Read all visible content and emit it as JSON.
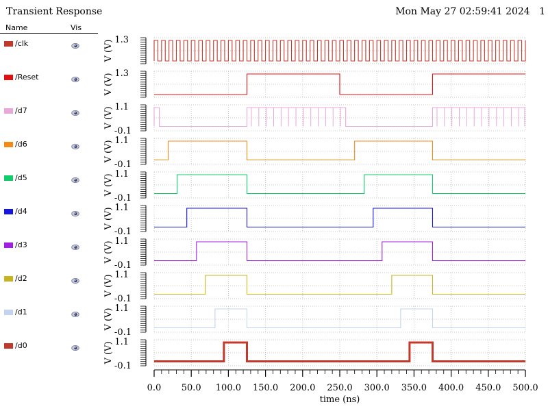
{
  "window": {
    "title": "Transient Response",
    "timestamp": "Mon May 27 02:59:41 2024",
    "page_number": "1"
  },
  "legend": {
    "name_header": "Name",
    "vis_header": "Vis",
    "vis_icon": "eye-icon"
  },
  "chart_data": {
    "type": "line",
    "xlabel": "time (ns)",
    "xlim": [
      0,
      500
    ],
    "xticks": [
      "0.0",
      "50.0",
      "100.0",
      "150.0",
      "200.0",
      "250.0",
      "300.0",
      "350.0",
      "400.0",
      "450.0",
      "500.0"
    ],
    "grid": true,
    "series": [
      {
        "name": "/clk",
        "color": "#c0392b",
        "ylabel": "V (V)",
        "ymax_label": "1.3",
        "ymin_label": "",
        "ylim": [
          0,
          1.3
        ],
        "clock_period_ns": 10,
        "clock_first_edge_ns": 0
      },
      {
        "name": "/Reset",
        "color": "#e01010",
        "ylabel": "V (V)",
        "ymax_label": "1.3",
        "ymin_label": "",
        "ylim": [
          0,
          1.3
        ],
        "edges_ns": [
          125,
          250,
          375
        ],
        "initial": 0
      },
      {
        "name": "/d7",
        "color": "#e8a8d8",
        "ylabel": "V (V)",
        "ymax_label": "1.1",
        "ymin_label": "-0.1",
        "ylim": [
          -0.1,
          1.1
        ],
        "edges_ns": [
          0,
          7,
          125,
          258,
          375
        ],
        "initial": 0,
        "glitches_ns": [
          131,
          141,
          151,
          161,
          171,
          181,
          191,
          201,
          211,
          221,
          231,
          241,
          251,
          381,
          391,
          401,
          411,
          421,
          431,
          441,
          451,
          461,
          471,
          481,
          491,
          499
        ]
      },
      {
        "name": "/d6",
        "color": "#f08a18",
        "ylabel": "V (V)",
        "ymax_label": "1.1",
        "ymin_label": "-0.1",
        "ylim": [
          -0.1,
          1.1
        ],
        "edges_ns": [
          19,
          125,
          270,
          375
        ],
        "initial": 0
      },
      {
        "name": "/d5",
        "color": "#10cc6a",
        "ylabel": "V (V)",
        "ymax_label": "1.1",
        "ymin_label": "-0.1",
        "ylim": [
          -0.1,
          1.1
        ],
        "edges_ns": [
          31,
          125,
          283,
          375
        ],
        "initial": 0
      },
      {
        "name": "/d4",
        "color": "#1515dd",
        "ylabel": "V (V)",
        "ymax_label": "1.1",
        "ymin_label": "-0.1",
        "ylim": [
          -0.1,
          1.1
        ],
        "edges_ns": [
          44,
          125,
          295,
          375
        ],
        "initial": 0
      },
      {
        "name": "/d3",
        "color": "#a020e0",
        "ylabel": "V (V)",
        "ymax_label": "1.1",
        "ymin_label": "-0.1",
        "ylim": [
          -0.1,
          1.1
        ],
        "edges_ns": [
          57,
          125,
          307,
          375
        ],
        "initial": 0
      },
      {
        "name": "/d2",
        "color": "#c8b420",
        "ylabel": "V (V)",
        "ymax_label": "1.1",
        "ymin_label": "-0.1",
        "ylim": [
          -0.1,
          1.1
        ],
        "edges_ns": [
          69,
          125,
          320,
          375
        ],
        "initial": 0
      },
      {
        "name": "/d1",
        "color": "#c4d4ee",
        "ylabel": "V (V)",
        "ymax_label": "1.1",
        "ymin_label": "-0.1",
        "ylim": [
          -0.1,
          1.1
        ],
        "edges_ns": [
          82,
          125,
          332,
          375
        ],
        "initial": 0
      },
      {
        "name": "/d0",
        "color": "#c0392b",
        "ylabel": "V (V)",
        "ymax_label": "1.1",
        "ymin_label": "-0.1",
        "ylim": [
          -0.1,
          1.1
        ],
        "edges_ns": [
          94,
          125,
          344,
          375
        ],
        "initial": 0,
        "bold": true
      }
    ]
  }
}
